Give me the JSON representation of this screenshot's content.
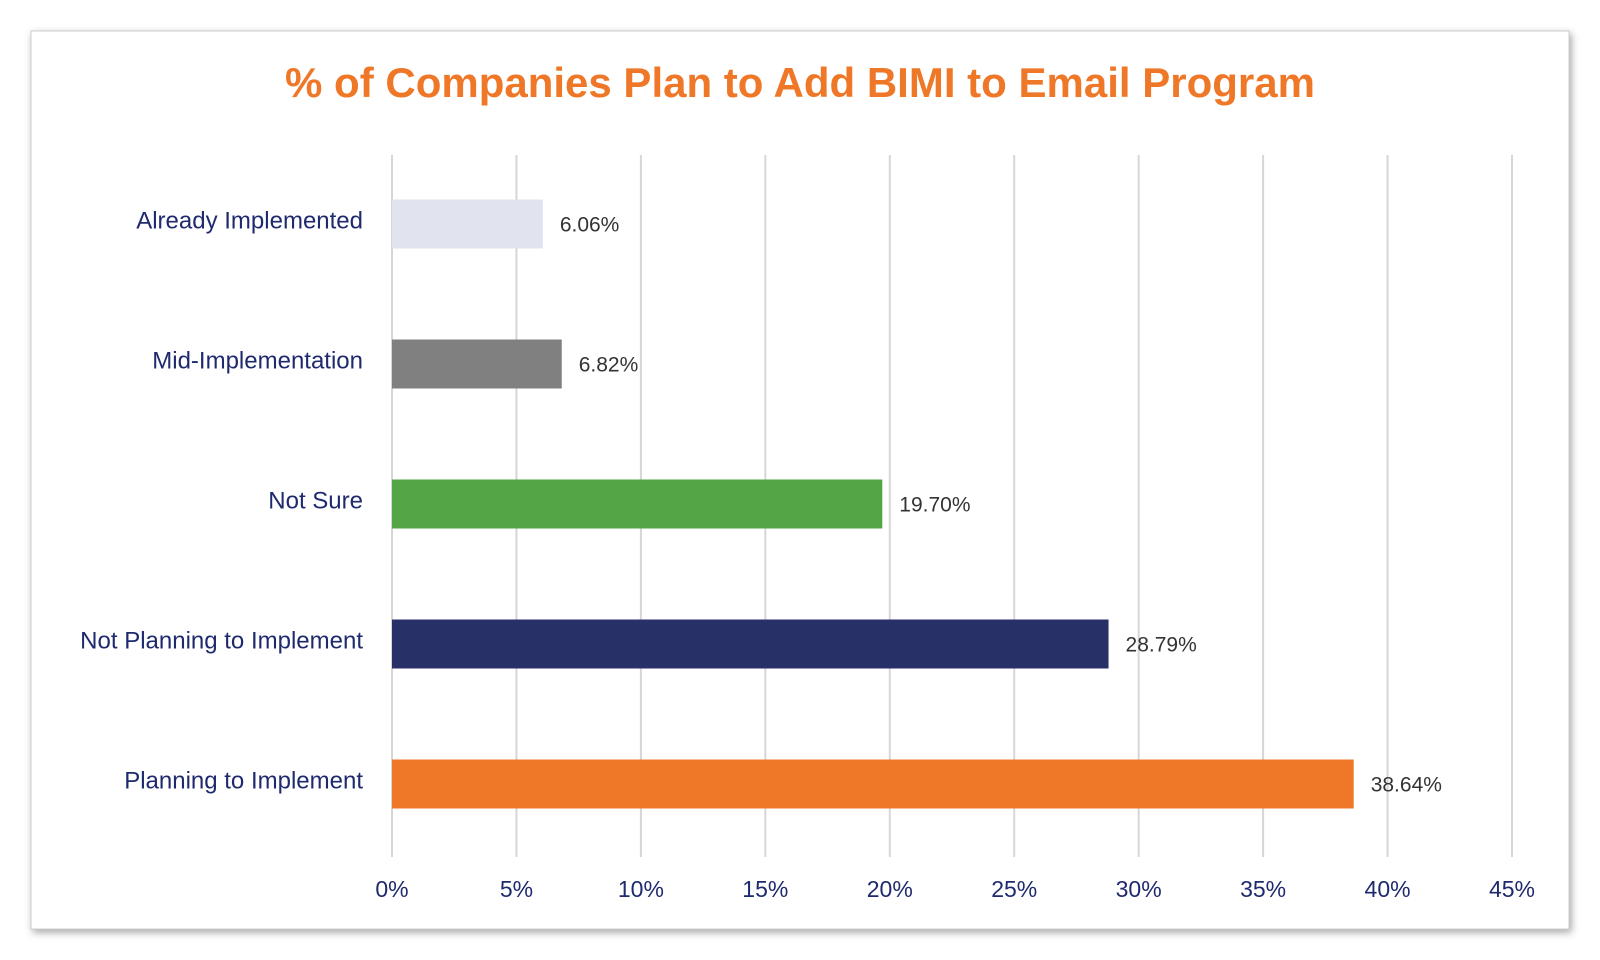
{
  "chart_data": {
    "type": "bar",
    "orientation": "horizontal",
    "title": "% of Companies Plan to Add BIMI to Email Program",
    "categories": [
      "Already Implemented",
      "Mid-Implementation",
      "Not Sure",
      "Not Planning to Implement",
      "Planning to Implement"
    ],
    "values": [
      6.06,
      6.82,
      19.7,
      28.79,
      38.64
    ],
    "value_labels": [
      "6.06%",
      "6.82%",
      "19.70%",
      "28.79%",
      "38.64%"
    ],
    "colors": [
      "#e1e3ef",
      "#808080",
      "#53a546",
      "#283068",
      "#ef7828"
    ],
    "xlim": [
      0,
      45
    ],
    "xticks": [
      {
        "value": 0,
        "label": "0%"
      },
      {
        "value": 5,
        "label": "5%"
      },
      {
        "value": 10,
        "label": "10%"
      },
      {
        "value": 15,
        "label": "15%"
      },
      {
        "value": 20,
        "label": "20%"
      },
      {
        "value": 25,
        "label": "25%"
      },
      {
        "value": 30,
        "label": "30%"
      },
      {
        "value": 35,
        "label": "35%"
      },
      {
        "value": 40,
        "label": "40%"
      },
      {
        "value": 45,
        "label": "45%"
      }
    ],
    "grid": true
  }
}
